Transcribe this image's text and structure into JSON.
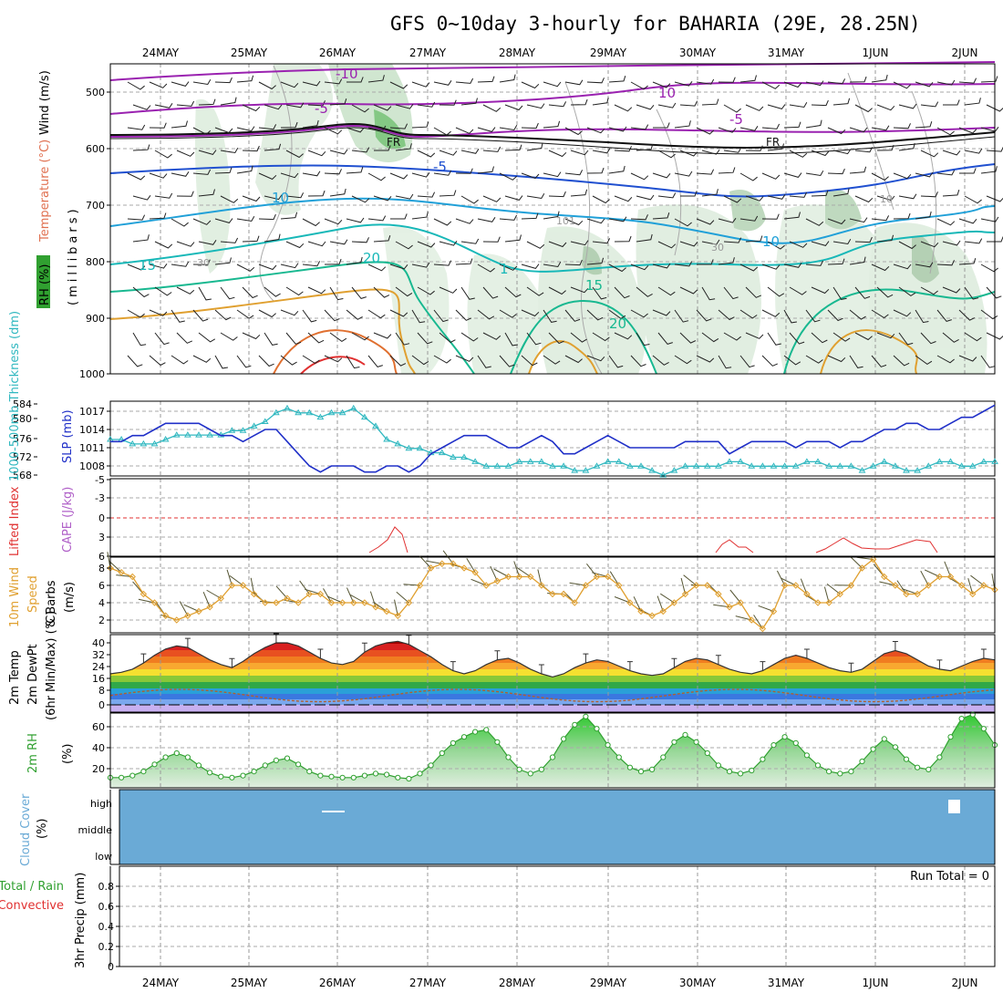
{
  "title": "GFS 0~10day 3-hourly for BAHARIA (29E, 28.25N)",
  "dates": [
    "24MAY",
    "25MAY",
    "26MAY",
    "27MAY",
    "28MAY",
    "29MAY",
    "30MAY",
    "31MAY",
    "1JUN",
    "2JUN"
  ],
  "colors": {
    "slp": "#2030c8",
    "thick": "#30b8c0",
    "li": "#e03030",
    "wind": "#e0a030",
    "rh": "#30a030",
    "cloud": "#6aaad6",
    "purple": "#9a22b0",
    "blue": "#2050d0",
    "cyan": "#20a0d8",
    "teal": "#18b8a0",
    "orange": "#e0a030"
  },
  "panels": {
    "upper": {
      "ylabel_parts": [
        "Wind (m/s)",
        "Temperature (°C)",
        "RH (%)"
      ],
      "yunit": "(millibars)",
      "ticks": [
        "500",
        "600",
        "700",
        "800",
        "900",
        "1000"
      ],
      "contour_labels": [
        "-10",
        "-5",
        "FR",
        "FR",
        "-5",
        "10",
        "-5",
        "10",
        "15",
        "20",
        "15",
        "20",
        "30",
        "30",
        "101",
        "10",
        "10",
        "1"
      ]
    },
    "slp": {
      "ylabel_left": "1000-500mb Thickness (dm)",
      "ylabel_right": "SLP (mb)",
      "ticks_left": [
        "584",
        "580",
        "576",
        "572",
        "568"
      ],
      "ticks_right": [
        "1017",
        "1014",
        "1011",
        "1008"
      ]
    },
    "li": {
      "ylabel_left": "Lifted Index",
      "ylabel_right": "CAPE (J/kg)",
      "ticks": [
        "-5",
        "-3",
        "0",
        "3",
        "6"
      ]
    },
    "wind10": {
      "ylabel_parts": [
        "10m Wind",
        "Speed",
        "& Barbs",
        "(m/s)"
      ],
      "ticks": [
        "8",
        "6",
        "4",
        "2"
      ]
    },
    "temp": {
      "ylabel_parts": [
        "2m Temp",
        "2m DewPt",
        "(6hr Min/Max) (°C)"
      ],
      "ticks": [
        "40",
        "32",
        "24",
        "16",
        "8",
        "0"
      ]
    },
    "rh2m": {
      "ylabel_parts": [
        "2m RH",
        "(%)"
      ],
      "ticks": [
        "60",
        "40",
        "20"
      ]
    },
    "cloud": {
      "ylabel_parts": [
        "Cloud Cover",
        "(%)"
      ],
      "levels": [
        "high",
        "middle",
        "low"
      ]
    },
    "precip": {
      "ylabel_parts": [
        "Total / Rain",
        "Convective",
        "3hr Precip (mm)"
      ],
      "ticks": [
        "0.8",
        "0.6",
        "0.4",
        "0.2",
        "0"
      ],
      "run_total": "Run Total = 0"
    }
  },
  "chart_data": [
    {
      "type": "line",
      "name": "slp",
      "unit": "mb",
      "ylim": [
        1005,
        1019
      ],
      "x": "3-hourly steps 0..80",
      "values": [
        1012,
        1012,
        1013,
        1013,
        1014,
        1015,
        1015,
        1015,
        1015,
        1014,
        1013,
        1013,
        1012,
        1013,
        1014,
        1014,
        1012,
        1010,
        1008,
        1007,
        1008,
        1008,
        1008,
        1007,
        1007,
        1008,
        1008,
        1007,
        1008,
        1010,
        1011,
        1012,
        1013,
        1013,
        1013,
        1012,
        1011,
        1011,
        1012,
        1013,
        1012,
        1010,
        1010,
        1011,
        1012,
        1013,
        1012,
        1011,
        1011,
        1011,
        1011,
        1011,
        1012,
        1012,
        1012,
        1012,
        1010,
        1011,
        1012,
        1012,
        1012,
        1012,
        1011,
        1012,
        1012,
        1012,
        1011,
        1012,
        1012,
        1013,
        1014,
        1014,
        1015,
        1015,
        1014,
        1014,
        1015,
        1016,
        1016,
        1017,
        1018
      ]
    },
    {
      "type": "line",
      "name": "thickness",
      "unit": "dm",
      "ylim": [
        566,
        586
      ],
      "x": "3-hourly steps 0..80",
      "values": [
        576,
        576,
        575,
        575,
        575,
        576,
        577,
        577,
        577,
        577,
        577,
        578,
        578,
        579,
        580,
        582,
        583,
        582,
        582,
        581,
        582,
        582,
        583,
        581,
        579,
        576,
        575,
        574,
        574,
        573,
        573,
        572,
        572,
        571,
        570,
        570,
        570,
        571,
        571,
        571,
        570,
        570,
        569,
        569,
        570,
        571,
        571,
        570,
        570,
        569,
        568,
        569,
        570,
        570,
        570,
        570,
        571,
        571,
        570,
        570,
        570,
        570,
        570,
        571,
        571,
        570,
        570,
        570,
        569,
        570,
        571,
        570,
        569,
        569,
        570,
        571,
        571,
        570,
        570,
        571,
        571
      ]
    },
    {
      "type": "line",
      "name": "lifted_index",
      "unit": "°C",
      "ylim": [
        -5,
        6
      ],
      "values": []
    },
    {
      "type": "line",
      "name": "wind10m",
      "unit": "m/s",
      "ylim": [
        0,
        9
      ],
      "values": [
        8,
        7.5,
        7,
        5,
        4,
        2.5,
        2,
        2.5,
        3,
        3.5,
        4.5,
        6,
        6,
        5,
        4,
        4,
        4.5,
        4,
        5,
        5,
        4,
        4,
        4,
        4,
        3.5,
        3,
        2.5,
        4,
        6,
        8,
        8.5,
        8.5,
        8,
        7.5,
        6,
        6.5,
        7,
        7,
        7,
        6,
        5,
        5,
        4,
        6,
        7,
        7,
        6,
        4,
        3,
        2.5,
        3,
        4,
        5,
        6,
        6,
        5,
        3.5,
        4,
        2,
        1,
        3,
        6,
        6,
        5,
        4,
        4,
        5,
        6,
        8,
        9,
        7,
        6,
        5,
        5,
        6,
        7,
        7,
        6,
        5,
        6,
        5.5
      ]
    },
    {
      "type": "area",
      "name": "temp2m",
      "unit": "°C",
      "ylim": [
        -2,
        44
      ],
      "values": [
        20,
        21,
        23,
        27,
        32,
        36,
        38,
        37,
        33,
        29,
        26,
        24,
        28,
        33,
        37,
        40,
        40,
        38,
        34,
        30,
        27,
        26,
        28,
        34,
        38,
        40,
        41,
        39,
        35,
        31,
        26,
        22,
        20,
        22,
        26,
        29,
        30,
        27,
        23,
        20,
        18,
        20,
        24,
        27,
        29,
        28,
        25,
        22,
        20,
        19,
        20,
        24,
        28,
        30,
        29,
        26,
        23,
        21,
        20,
        22,
        26,
        30,
        32,
        30,
        27,
        24,
        22,
        21,
        23,
        28,
        33,
        35,
        33,
        29,
        25,
        23,
        22,
        25,
        28,
        30,
        29
      ]
    },
    {
      "type": "area",
      "name": "rh2m",
      "unit": "%",
      "ylim": [
        0,
        80
      ],
      "values": [
        10,
        10,
        12,
        16,
        23,
        30,
        34,
        30,
        22,
        15,
        11,
        10,
        12,
        16,
        22,
        27,
        29,
        23,
        16,
        12,
        11,
        10,
        10,
        12,
        14,
        13,
        10,
        9,
        14,
        22,
        34,
        44,
        50,
        55,
        57,
        45,
        30,
        18,
        14,
        18,
        30,
        48,
        62,
        70,
        58,
        42,
        30,
        20,
        16,
        18,
        30,
        45,
        52,
        45,
        34,
        22,
        16,
        14,
        17,
        28,
        42,
        50,
        44,
        32,
        22,
        16,
        14,
        16,
        26,
        38,
        48,
        40,
        28,
        20,
        18,
        30,
        50,
        68,
        72,
        58,
        42
      ]
    },
    {
      "type": "bar",
      "name": "precip3h",
      "unit": "mm",
      "ylim": [
        0,
        1
      ],
      "values": []
    }
  ]
}
